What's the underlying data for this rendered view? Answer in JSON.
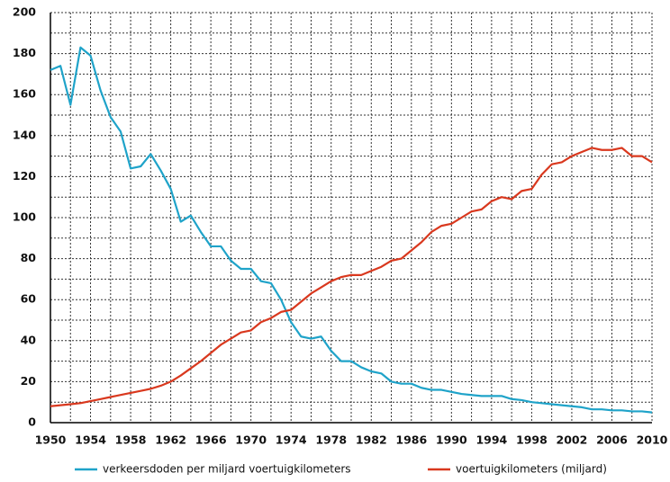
{
  "chart_data": {
    "type": "line",
    "x": [
      1950,
      1951,
      1952,
      1953,
      1954,
      1955,
      1956,
      1957,
      1958,
      1959,
      1960,
      1961,
      1962,
      1963,
      1964,
      1965,
      1966,
      1967,
      1968,
      1969,
      1970,
      1971,
      1972,
      1973,
      1974,
      1975,
      1976,
      1977,
      1978,
      1979,
      1980,
      1981,
      1982,
      1983,
      1984,
      1985,
      1986,
      1987,
      1988,
      1989,
      1990,
      1991,
      1992,
      1993,
      1994,
      1995,
      1996,
      1997,
      1998,
      1999,
      2000,
      2001,
      2002,
      2003,
      2004,
      2005,
      2006,
      2007,
      2008,
      2009,
      2010
    ],
    "series": [
      {
        "name": "verkeersdoden per miljard voertuigkilometers",
        "color": "#1fa3c9",
        "values": [
          172,
          174,
          155,
          183,
          179,
          162,
          149,
          142,
          124,
          125,
          131,
          123,
          114,
          98,
          101,
          93,
          86,
          86,
          79,
          75,
          75,
          69,
          68,
          60,
          49,
          42,
          41,
          42,
          35,
          30,
          30,
          27,
          25,
          24,
          20,
          19,
          19,
          17,
          16,
          16,
          15,
          14,
          13.5,
          13,
          13,
          13,
          11.5,
          11,
          10,
          9.5,
          9,
          8.5,
          8,
          7.5,
          6.5,
          6.5,
          6,
          6,
          5.5,
          5.5,
          5
        ]
      },
      {
        "name": "voertuigkilometers (miljard)",
        "color": "#d9381e",
        "values": [
          8,
          8.5,
          9,
          9.5,
          10.5,
          11.5,
          12.5,
          13.5,
          14.5,
          15.5,
          16.5,
          18,
          20,
          23,
          26.5,
          30,
          34,
          38,
          41,
          44,
          45,
          49,
          51,
          54,
          55,
          59,
          63,
          66,
          69,
          71,
          72,
          72,
          74,
          76,
          79,
          80,
          84,
          88,
          93,
          96,
          97,
          100,
          103,
          104,
          108,
          110,
          109,
          113,
          114,
          121,
          126,
          127,
          130,
          132,
          134,
          133,
          133,
          134,
          130,
          130,
          127
        ]
      }
    ],
    "xlim": [
      1950,
      2010
    ],
    "xticks": [
      1950,
      1954,
      1958,
      1962,
      1966,
      1970,
      1974,
      1978,
      1982,
      1986,
      1990,
      1994,
      1998,
      2002,
      2006,
      2010
    ],
    "xgrid": [
      1952,
      1954,
      1956,
      1958,
      1960,
      1962,
      1964,
      1966,
      1968,
      1970,
      1972,
      1974,
      1976,
      1978,
      1980,
      1982,
      1984,
      1986,
      1988,
      1990,
      1992,
      1994,
      1996,
      1998,
      2000,
      2002,
      2004,
      2006,
      2008,
      2010
    ],
    "ylim": [
      0,
      200
    ],
    "yticks": [
      0,
      20,
      40,
      60,
      80,
      100,
      120,
      140,
      160,
      180,
      200
    ],
    "ygrid": [
      10,
      20,
      30,
      40,
      50,
      60,
      70,
      80,
      90,
      100,
      110,
      120,
      130,
      140,
      150,
      160,
      170,
      180,
      190,
      200
    ],
    "grid": true,
    "legend": "bottom"
  }
}
